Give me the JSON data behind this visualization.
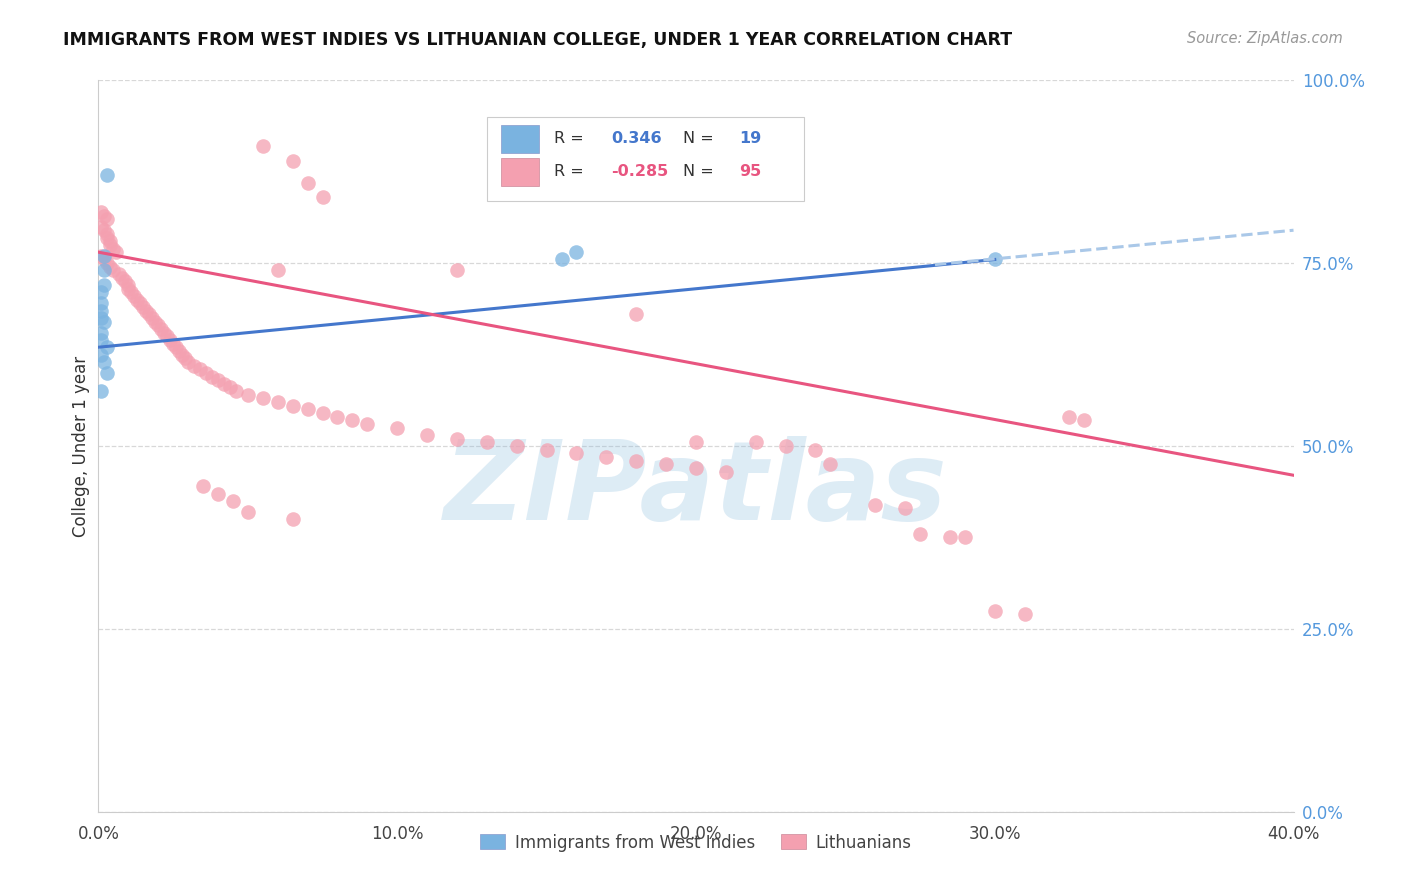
{
  "title": "IMMIGRANTS FROM WEST INDIES VS LITHUANIAN COLLEGE, UNDER 1 YEAR CORRELATION CHART",
  "source": "Source: ZipAtlas.com",
  "ylabel": "College, Under 1 year",
  "blue_scatter": [
    [
      0.003,
      0.87
    ],
    [
      0.002,
      0.76
    ],
    [
      0.002,
      0.74
    ],
    [
      0.002,
      0.72
    ],
    [
      0.001,
      0.71
    ],
    [
      0.001,
      0.695
    ],
    [
      0.001,
      0.685
    ],
    [
      0.001,
      0.675
    ],
    [
      0.002,
      0.67
    ],
    [
      0.001,
      0.655
    ],
    [
      0.001,
      0.645
    ],
    [
      0.003,
      0.635
    ],
    [
      0.001,
      0.625
    ],
    [
      0.002,
      0.615
    ],
    [
      0.003,
      0.6
    ],
    [
      0.001,
      0.575
    ],
    [
      0.155,
      0.755
    ],
    [
      0.16,
      0.765
    ],
    [
      0.3,
      0.755
    ]
  ],
  "pink_scatter": [
    [
      0.001,
      0.82
    ],
    [
      0.002,
      0.815
    ],
    [
      0.003,
      0.81
    ],
    [
      0.001,
      0.8
    ],
    [
      0.002,
      0.795
    ],
    [
      0.003,
      0.79
    ],
    [
      0.003,
      0.785
    ],
    [
      0.004,
      0.78
    ],
    [
      0.004,
      0.775
    ],
    [
      0.005,
      0.77
    ],
    [
      0.006,
      0.765
    ],
    [
      0.001,
      0.76
    ],
    [
      0.002,
      0.755
    ],
    [
      0.003,
      0.75
    ],
    [
      0.004,
      0.745
    ],
    [
      0.005,
      0.74
    ],
    [
      0.007,
      0.735
    ],
    [
      0.008,
      0.73
    ],
    [
      0.009,
      0.725
    ],
    [
      0.01,
      0.72
    ],
    [
      0.01,
      0.715
    ],
    [
      0.011,
      0.71
    ],
    [
      0.012,
      0.705
    ],
    [
      0.013,
      0.7
    ],
    [
      0.014,
      0.695
    ],
    [
      0.015,
      0.69
    ],
    [
      0.016,
      0.685
    ],
    [
      0.017,
      0.68
    ],
    [
      0.018,
      0.675
    ],
    [
      0.019,
      0.67
    ],
    [
      0.02,
      0.665
    ],
    [
      0.021,
      0.66
    ],
    [
      0.022,
      0.655
    ],
    [
      0.023,
      0.65
    ],
    [
      0.024,
      0.645
    ],
    [
      0.025,
      0.64
    ],
    [
      0.026,
      0.635
    ],
    [
      0.027,
      0.63
    ],
    [
      0.028,
      0.625
    ],
    [
      0.029,
      0.62
    ],
    [
      0.03,
      0.615
    ],
    [
      0.032,
      0.61
    ],
    [
      0.034,
      0.605
    ],
    [
      0.036,
      0.6
    ],
    [
      0.038,
      0.595
    ],
    [
      0.04,
      0.59
    ],
    [
      0.042,
      0.585
    ],
    [
      0.044,
      0.58
    ],
    [
      0.046,
      0.575
    ],
    [
      0.05,
      0.57
    ],
    [
      0.055,
      0.565
    ],
    [
      0.06,
      0.56
    ],
    [
      0.065,
      0.555
    ],
    [
      0.055,
      0.91
    ],
    [
      0.065,
      0.89
    ],
    [
      0.07,
      0.86
    ],
    [
      0.075,
      0.84
    ],
    [
      0.06,
      0.74
    ],
    [
      0.12,
      0.74
    ],
    [
      0.07,
      0.55
    ],
    [
      0.075,
      0.545
    ],
    [
      0.08,
      0.54
    ],
    [
      0.085,
      0.535
    ],
    [
      0.09,
      0.53
    ],
    [
      0.1,
      0.525
    ],
    [
      0.11,
      0.515
    ],
    [
      0.12,
      0.51
    ],
    [
      0.13,
      0.505
    ],
    [
      0.14,
      0.5
    ],
    [
      0.15,
      0.495
    ],
    [
      0.16,
      0.49
    ],
    [
      0.17,
      0.485
    ],
    [
      0.18,
      0.48
    ],
    [
      0.19,
      0.475
    ],
    [
      0.2,
      0.47
    ],
    [
      0.21,
      0.465
    ],
    [
      0.18,
      0.68
    ],
    [
      0.2,
      0.505
    ],
    [
      0.22,
      0.505
    ],
    [
      0.23,
      0.5
    ],
    [
      0.24,
      0.495
    ],
    [
      0.245,
      0.475
    ],
    [
      0.26,
      0.42
    ],
    [
      0.27,
      0.415
    ],
    [
      0.275,
      0.38
    ],
    [
      0.285,
      0.375
    ],
    [
      0.29,
      0.375
    ],
    [
      0.3,
      0.275
    ],
    [
      0.31,
      0.27
    ],
    [
      0.325,
      0.54
    ],
    [
      0.33,
      0.535
    ],
    [
      0.035,
      0.445
    ],
    [
      0.04,
      0.435
    ],
    [
      0.045,
      0.425
    ],
    [
      0.05,
      0.41
    ],
    [
      0.065,
      0.4
    ]
  ],
  "blue_line": {
    "x0": 0.0,
    "y0": 0.635,
    "x1": 0.3,
    "y1": 0.755
  },
  "blue_dash_line": {
    "x0": 0.28,
    "y0": 0.748,
    "x1": 0.4,
    "y1": 0.795
  },
  "pink_line": {
    "x0": 0.0,
    "y0": 0.765,
    "x1": 0.4,
    "y1": 0.46
  },
  "xlim": [
    0.0,
    0.4
  ],
  "ylim": [
    0.0,
    1.0
  ],
  "y_ticks": [
    0.0,
    0.25,
    0.5,
    0.75,
    1.0
  ],
  "x_ticks": [
    0.0,
    0.1,
    0.2,
    0.3,
    0.4
  ],
  "bg_color": "#ffffff",
  "blue_color": "#7ab3e0",
  "pink_color": "#f4a0b0",
  "blue_line_color": "#4477cc",
  "pink_line_color": "#e85580",
  "grid_color": "#d8d8d8",
  "right_axis_color": "#5599dd",
  "watermark": "ZIPatlas"
}
